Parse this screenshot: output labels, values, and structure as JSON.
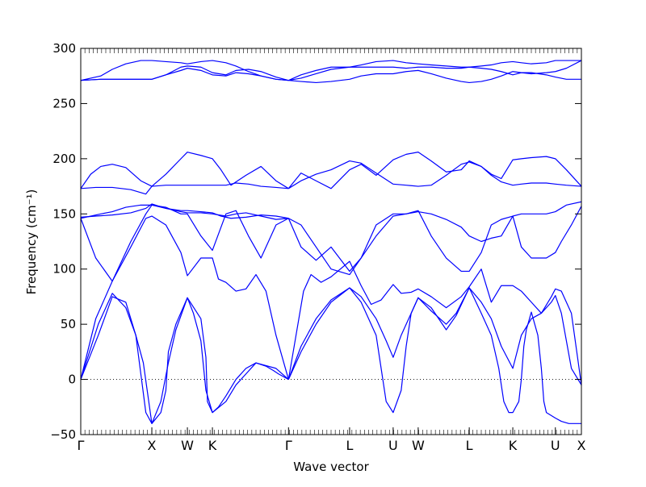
{
  "chart_data": {
    "type": "line",
    "title": "",
    "xlabel": "Wave vector",
    "ylabel": "Frequency (cm⁻¹)",
    "ylim": [
      -50,
      300
    ],
    "yticks": [
      -50,
      0,
      50,
      100,
      150,
      200,
      250,
      300
    ],
    "ytick_labels": [
      "−50",
      "0",
      "50",
      "100",
      "150",
      "200",
      "250",
      "300"
    ],
    "xlim": [
      0,
      1
    ],
    "high_symmetry_points": [
      {
        "label": "Γ",
        "x": 0.0
      },
      {
        "label": "X",
        "x": 0.142
      },
      {
        "label": "W",
        "x": 0.213
      },
      {
        "label": "K",
        "x": 0.263
      },
      {
        "label": "Γ",
        "x": 0.415
      },
      {
        "label": "L",
        "x": 0.537
      },
      {
        "label": "U",
        "x": 0.624
      },
      {
        "label": "W",
        "x": 0.674
      },
      {
        "label": "L",
        "x": 0.776
      },
      {
        "label": "K",
        "x": 0.863
      },
      {
        "label": "U",
        "x": 0.948
      },
      {
        "label": "X",
        "x": 1.0
      }
    ],
    "zero_line": true,
    "grid": false,
    "legend": "none",
    "line_color": "#0000ff",
    "series": [
      {
        "x": [
          0,
          0.035,
          0.063,
          0.09,
          0.11,
          0.12,
          0.13,
          0.142,
          0.16,
          0.17,
          0.175,
          0.19,
          0.213,
          0.24,
          0.25,
          0.253,
          0.263,
          0.29,
          0.31,
          0.33,
          0.35,
          0.39,
          0.415
        ],
        "y": [
          0,
          40,
          75,
          70,
          40,
          5,
          -30,
          -40,
          -30,
          -10,
          25,
          50,
          74,
          55,
          20,
          -20,
          -30,
          -20,
          -5,
          5,
          15,
          10,
          0
        ]
      },
      {
        "x": [
          0.415,
          0.44,
          0.47,
          0.5,
          0.537,
          0.56,
          0.59,
          0.6,
          0.61,
          0.624,
          0.64,
          0.65,
          0.66,
          0.674,
          0.7,
          0.73,
          0.75,
          0.776,
          0.8,
          0.82,
          0.835,
          0.845,
          0.855,
          0.863,
          0.875,
          0.88,
          0.885,
          0.89,
          0.9,
          0.913,
          0.92,
          0.925,
          0.93,
          0.948,
          0.96,
          0.975,
          0.99,
          1.0
        ],
        "y": [
          0,
          25,
          50,
          70,
          83,
          70,
          40,
          10,
          -20,
          -30,
          -10,
          30,
          60,
          74,
          65,
          45,
          58,
          83,
          60,
          40,
          10,
          -20,
          -30,
          -30,
          -20,
          0,
          30,
          45,
          61,
          40,
          10,
          -20,
          -30,
          -35,
          -38,
          -40,
          -40,
          -40
        ]
      },
      {
        "x": [
          0,
          0.035,
          0.063,
          0.09,
          0.11,
          0.125,
          0.142,
          0.16,
          0.175,
          0.19,
          0.213,
          0.225,
          0.24,
          0.25,
          0.263,
          0.275,
          0.29,
          0.31,
          0.33,
          0.35,
          0.37,
          0.385,
          0.395,
          0.415
        ],
        "y": [
          0,
          50,
          78,
          65,
          40,
          15,
          -40,
          -20,
          15,
          45,
          74,
          60,
          35,
          -10,
          -30,
          -25,
          -15,
          0,
          10,
          15,
          12,
          8,
          5,
          0
        ]
      },
      {
        "x": [
          0.415,
          0.44,
          0.47,
          0.5,
          0.537,
          0.56,
          0.59,
          0.61,
          0.624,
          0.64,
          0.66,
          0.674,
          0.7,
          0.73,
          0.75,
          0.776,
          0.8,
          0.82,
          0.84,
          0.863,
          0.88,
          0.9,
          0.92,
          0.94,
          0.948,
          0.96,
          0.98,
          1.0
        ],
        "y": [
          0,
          30,
          55,
          72,
          83,
          75,
          55,
          35,
          20,
          40,
          60,
          74,
          62,
          50,
          60,
          83,
          70,
          55,
          30,
          10,
          40,
          55,
          60,
          70,
          76,
          60,
          10,
          -5
        ]
      },
      {
        "x": [
          0,
          0.03,
          0.063,
          0.1,
          0.13,
          0.142,
          0.17,
          0.2,
          0.213,
          0.24,
          0.263,
          0.275,
          0.29,
          0.31,
          0.33,
          0.35,
          0.37,
          0.39,
          0.415
        ],
        "y": [
          0,
          55,
          89,
          120,
          146,
          148,
          140,
          115,
          94,
          110,
          110,
          91,
          88,
          80,
          82,
          95,
          80,
          40,
          0
        ]
      },
      {
        "x": [
          0.415,
          0.43,
          0.445,
          0.46,
          0.48,
          0.5,
          0.537,
          0.56,
          0.58,
          0.6,
          0.624,
          0.64,
          0.66,
          0.674,
          0.7,
          0.73,
          0.76,
          0.776,
          0.8,
          0.82,
          0.84,
          0.863,
          0.88,
          0.9,
          0.92,
          0.94,
          0.948,
          0.96,
          0.98,
          1.0
        ],
        "y": [
          0,
          40,
          80,
          95,
          88,
          93,
          107,
          85,
          68,
          72,
          86,
          78,
          79,
          82,
          75,
          65,
          75,
          84,
          100,
          70,
          85,
          85,
          80,
          70,
          60,
          75,
          82,
          80,
          60,
          -5
        ]
      },
      {
        "x": [
          0,
          0.03,
          0.063,
          0.1,
          0.13,
          0.142,
          0.17,
          0.2,
          0.213,
          0.24,
          0.263,
          0.29,
          0.31,
          0.335,
          0.36,
          0.39,
          0.415
        ],
        "y": [
          146,
          110,
          89,
          125,
          150,
          158,
          156,
          150,
          150,
          130,
          117,
          150,
          153,
          130,
          110,
          140,
          146
        ]
      },
      {
        "x": [
          0.415,
          0.44,
          0.47,
          0.5,
          0.537,
          0.56,
          0.59,
          0.624,
          0.65,
          0.674,
          0.7,
          0.73,
          0.76,
          0.776,
          0.8,
          0.82,
          0.84,
          0.863,
          0.88,
          0.9,
          0.93,
          0.948,
          0.96,
          0.98,
          1.0
        ],
        "y": [
          146,
          120,
          108,
          120,
          98,
          110,
          140,
          150,
          150,
          153,
          130,
          110,
          98,
          98,
          115,
          140,
          145,
          148,
          120,
          110,
          110,
          115,
          125,
          140,
          157
        ]
      },
      {
        "x": [
          0,
          0.04,
          0.063,
          0.09,
          0.12,
          0.142,
          0.17,
          0.2,
          0.213,
          0.24,
          0.263,
          0.29,
          0.31,
          0.33,
          0.36,
          0.39,
          0.415
        ],
        "y": [
          146,
          150,
          152,
          156,
          158,
          158,
          155,
          152,
          151,
          151,
          150,
          148,
          150,
          151,
          148,
          145,
          146
        ]
      },
      {
        "x": [
          0.415,
          0.44,
          0.47,
          0.5,
          0.537,
          0.56,
          0.59,
          0.624,
          0.65,
          0.674,
          0.7,
          0.73,
          0.76,
          0.776,
          0.8,
          0.82,
          0.84,
          0.863,
          0.88,
          0.9,
          0.93,
          0.948,
          0.97,
          1.0
        ],
        "y": [
          146,
          140,
          120,
          100,
          95,
          110,
          130,
          148,
          150,
          152,
          150,
          145,
          138,
          130,
          125,
          128,
          130,
          148,
          150,
          150,
          150,
          152,
          158,
          161
        ]
      },
      {
        "x": [
          0,
          0.02,
          0.04,
          0.063,
          0.09,
          0.12,
          0.142,
          0.17,
          0.2,
          0.213,
          0.24,
          0.263,
          0.29,
          0.31,
          0.335,
          0.36,
          0.39,
          0.415
        ],
        "y": [
          173,
          186,
          193,
          195,
          192,
          180,
          175,
          176,
          176,
          176,
          176,
          176,
          176,
          178,
          177,
          175,
          174,
          173
        ]
      },
      {
        "x": [
          0.415,
          0.44,
          0.47,
          0.5,
          0.537,
          0.56,
          0.59,
          0.624,
          0.65,
          0.674,
          0.7,
          0.73,
          0.76,
          0.776,
          0.8,
          0.82,
          0.84,
          0.863,
          0.88,
          0.9,
          0.93,
          0.948,
          0.97,
          1.0
        ],
        "y": [
          173,
          180,
          186,
          190,
          198,
          196,
          187,
          177,
          176,
          175,
          176,
          185,
          195,
          197,
          193,
          185,
          179,
          176,
          177,
          178,
          178,
          177,
          176,
          175
        ]
      },
      {
        "x": [
          0,
          0.03,
          0.063,
          0.1,
          0.13,
          0.142,
          0.17,
          0.2,
          0.213,
          0.24,
          0.263,
          0.28,
          0.3,
          0.33,
          0.36,
          0.39,
          0.415
        ],
        "y": [
          173,
          174,
          174,
          172,
          168,
          175,
          186,
          200,
          206,
          203,
          200,
          190,
          176,
          185,
          193,
          180,
          173
        ]
      },
      {
        "x": [
          0.415,
          0.44,
          0.47,
          0.5,
          0.537,
          0.56,
          0.59,
          0.624,
          0.65,
          0.674,
          0.7,
          0.73,
          0.76,
          0.776,
          0.8,
          0.82,
          0.84,
          0.863,
          0.88,
          0.9,
          0.93,
          0.948,
          0.97,
          1.0
        ],
        "y": [
          173,
          187,
          180,
          173,
          190,
          195,
          185,
          199,
          204,
          206,
          198,
          188,
          190,
          198,
          193,
          186,
          182,
          199,
          200,
          201,
          202,
          200,
          190,
          175
        ]
      },
      {
        "x": [
          0,
          0.03,
          0.063,
          0.1,
          0.13,
          0.142,
          0.17,
          0.2,
          0.213,
          0.24,
          0.263,
          0.28,
          0.3,
          0.33,
          0.36,
          0.39,
          0.415
        ],
        "y": [
          147,
          148,
          149,
          151,
          155,
          159,
          155,
          153,
          153,
          152,
          151,
          148,
          146,
          147,
          149,
          148,
          146
        ]
      },
      {
        "x": [
          0,
          0.04,
          0.063,
          0.09,
          0.12,
          0.142,
          0.17,
          0.2,
          0.213,
          0.24,
          0.263,
          0.29,
          0.31,
          0.335,
          0.36,
          0.39,
          0.415
        ],
        "y": [
          271,
          275,
          281,
          286,
          289,
          289,
          288,
          287,
          286,
          288,
          289,
          287,
          284,
          279,
          275,
          272,
          271
        ]
      },
      {
        "x": [
          0.415,
          0.44,
          0.47,
          0.5,
          0.537,
          0.56,
          0.59,
          0.624,
          0.65,
          0.674,
          0.7,
          0.73,
          0.76,
          0.776,
          0.8,
          0.82,
          0.84,
          0.863,
          0.88,
          0.9,
          0.93,
          0.948,
          0.97,
          1.0
        ],
        "y": [
          271,
          273,
          277,
          281,
          283,
          285,
          288,
          289,
          287,
          286,
          285,
          284,
          283,
          283,
          284,
          285,
          287,
          288,
          287,
          286,
          287,
          289,
          289,
          289
        ]
      },
      {
        "x": [
          0,
          0.04,
          0.063,
          0.09,
          0.12,
          0.142,
          0.17,
          0.2,
          0.213,
          0.24,
          0.263,
          0.29,
          0.31,
          0.335,
          0.36,
          0.39,
          0.415
        ],
        "y": [
          271,
          272,
          272,
          272,
          272,
          272,
          276,
          283,
          284,
          283,
          278,
          276,
          280,
          281,
          279,
          274,
          271
        ]
      },
      {
        "x": [
          0.415,
          0.44,
          0.47,
          0.5,
          0.537,
          0.56,
          0.59,
          0.624,
          0.65,
          0.674,
          0.7,
          0.73,
          0.76,
          0.776,
          0.8,
          0.82,
          0.84,
          0.863,
          0.88,
          0.9,
          0.93,
          0.948,
          0.97,
          1.0
        ],
        "y": [
          271,
          276,
          280,
          283,
          283,
          283,
          283,
          283,
          282,
          283,
          283,
          282,
          282,
          283,
          282,
          281,
          279,
          276,
          278,
          277,
          278,
          279,
          282,
          289
        ]
      },
      {
        "x": [
          0,
          0.04,
          0.063,
          0.09,
          0.12,
          0.142,
          0.17,
          0.2,
          0.213,
          0.24,
          0.263,
          0.29,
          0.31,
          0.335,
          0.36,
          0.39,
          0.415
        ],
        "y": [
          271,
          272,
          272,
          272,
          272,
          272,
          276,
          280,
          282,
          280,
          276,
          275,
          278,
          277,
          275,
          272,
          271
        ]
      },
      {
        "x": [
          0.415,
          0.44,
          0.47,
          0.5,
          0.537,
          0.56,
          0.59,
          0.624,
          0.65,
          0.674,
          0.7,
          0.73,
          0.76,
          0.776,
          0.8,
          0.82,
          0.84,
          0.863,
          0.88,
          0.9,
          0.93,
          0.948,
          0.97,
          1.0
        ],
        "y": [
          271,
          270,
          269,
          270,
          272,
          275,
          277,
          277,
          279,
          280,
          277,
          273,
          270,
          269,
          270,
          272,
          275,
          279,
          278,
          278,
          276,
          274,
          272,
          272
        ]
      }
    ]
  }
}
